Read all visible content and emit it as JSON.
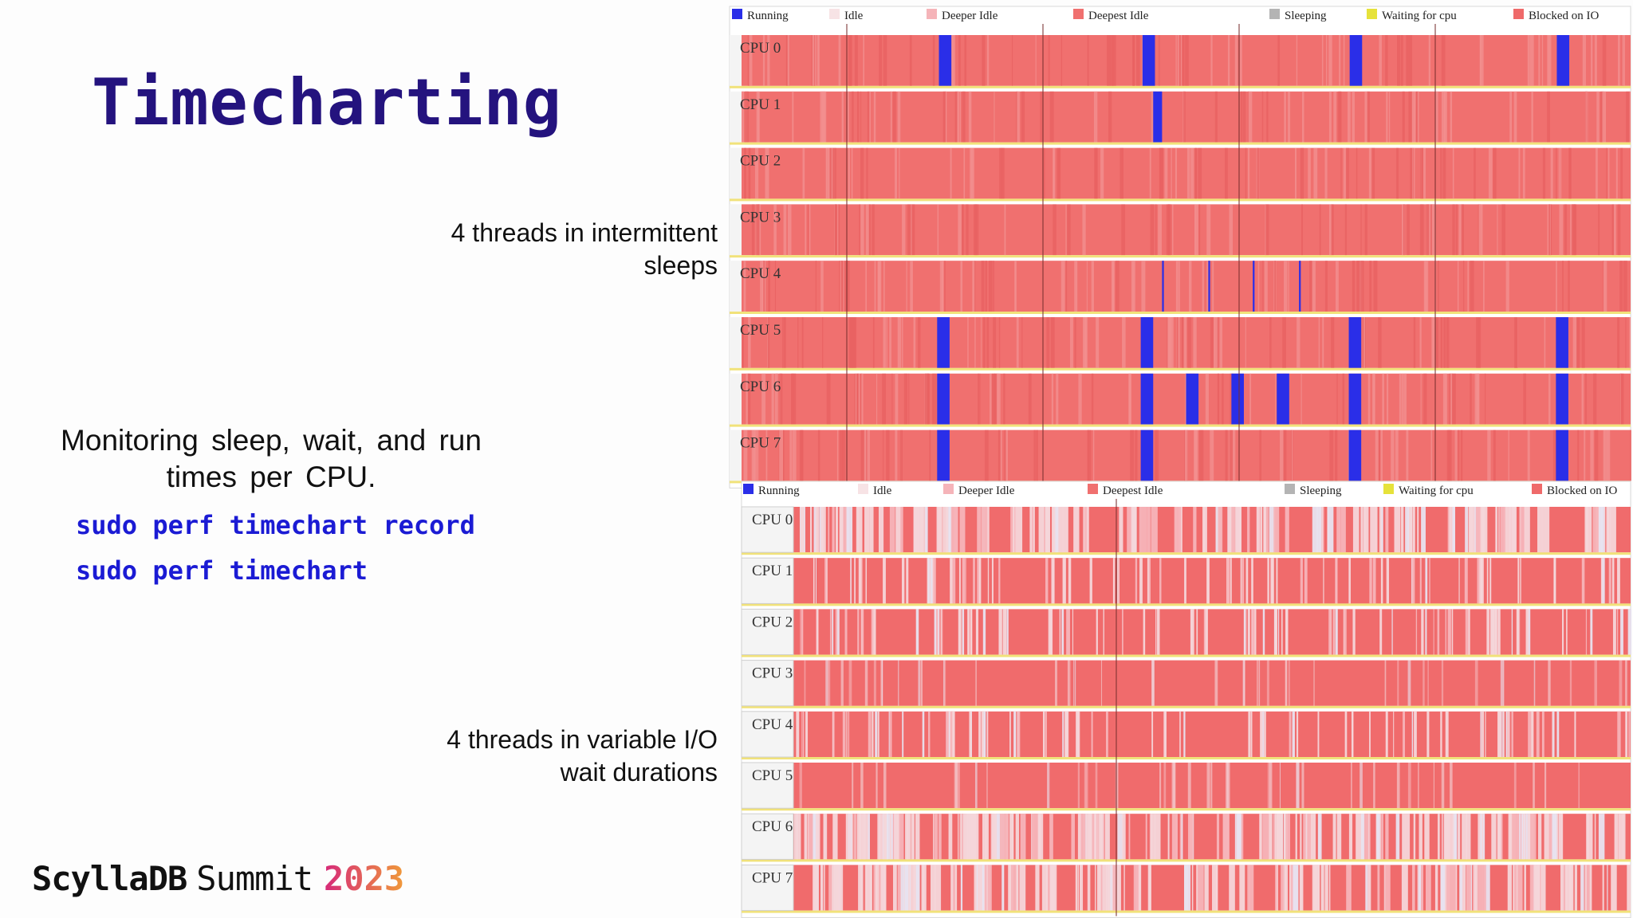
{
  "slide": {
    "title": "Timecharting",
    "caption_top": "4 threads in intermittent sleeps",
    "caption_bottom": "4 threads in  variable I/O wait durations",
    "description": "Monitoring  sleep,  wait,  and run times per CPU.",
    "commands": [
      "sudo perf timechart record",
      "sudo perf timechart"
    ],
    "brand": {
      "name": "ScyllaDB",
      "event": "Summit",
      "year": "2023"
    }
  },
  "chart_data": [
    {
      "type": "timechart",
      "legend": [
        {
          "label": "Running",
          "color": "#2a2ee8"
        },
        {
          "label": "Idle",
          "color": "#f7e3e5"
        },
        {
          "label": "Deeper Idle",
          "color": "#f5b4b9"
        },
        {
          "label": "Deepest Idle",
          "color": "#f0706f"
        },
        {
          "label": "Sleeping",
          "color": "#b4b4b4"
        },
        {
          "label": "Waiting for cpu",
          "color": "#e6e23a"
        },
        {
          "label": "Blocked on IO",
          "color": "#ef6a6a"
        }
      ],
      "rows": [
        "CPU 0",
        "CPU 1",
        "CPU 2",
        "CPU 3",
        "CPU 4",
        "CPU 5",
        "CPU 6",
        "CPU 7"
      ],
      "time_range": [
        0,
        100
      ],
      "running_intervals": [
        [
          [
            22.2,
            23.6
          ],
          [
            45.1,
            46.5
          ],
          [
            68.4,
            69.8
          ],
          [
            91.7,
            93.1
          ]
        ],
        [
          [
            46.3,
            47.3
          ]
        ],
        [],
        [],
        [
          [
            47.3,
            47.5
          ],
          [
            52.5,
            52.7
          ],
          [
            57.5,
            57.7
          ],
          [
            62.7,
            62.9
          ]
        ],
        [
          [
            22.0,
            23.4
          ],
          [
            44.9,
            46.3
          ],
          [
            68.3,
            69.7
          ],
          [
            91.6,
            93.0
          ]
        ],
        [
          [
            22.0,
            23.4
          ],
          [
            44.9,
            46.3
          ],
          [
            50.0,
            51.4
          ],
          [
            55.1,
            56.5
          ],
          [
            60.2,
            61.6
          ],
          [
            68.3,
            69.7
          ],
          [
            91.6,
            93.0
          ]
        ],
        [
          [
            22.0,
            23.4
          ],
          [
            44.9,
            46.3
          ],
          [
            68.3,
            69.7
          ],
          [
            91.6,
            93.0
          ]
        ]
      ]
    },
    {
      "type": "timechart",
      "legend": [
        {
          "label": "Running",
          "color": "#2a2ee8"
        },
        {
          "label": "Idle",
          "color": "#f7e3e5"
        },
        {
          "label": "Deeper Idle",
          "color": "#f5b4b9"
        },
        {
          "label": "Deepest Idle",
          "color": "#f0706f"
        },
        {
          "label": "Sleeping",
          "color": "#b4b4b4"
        },
        {
          "label": "Waiting for cpu",
          "color": "#e6e23a"
        },
        {
          "label": "Blocked on IO",
          "color": "#ef6a6a"
        }
      ],
      "rows": [
        "CPU 0",
        "CPU 1",
        "CPU 2",
        "CPU 3",
        "CPU 4",
        "CPU 5",
        "CPU 6",
        "CPU 7"
      ],
      "time_range": [
        0,
        100
      ],
      "idle_mix": [
        0.45,
        0.18,
        0.25,
        0.03,
        0.2,
        0.02,
        0.6,
        0.5
      ]
    }
  ]
}
